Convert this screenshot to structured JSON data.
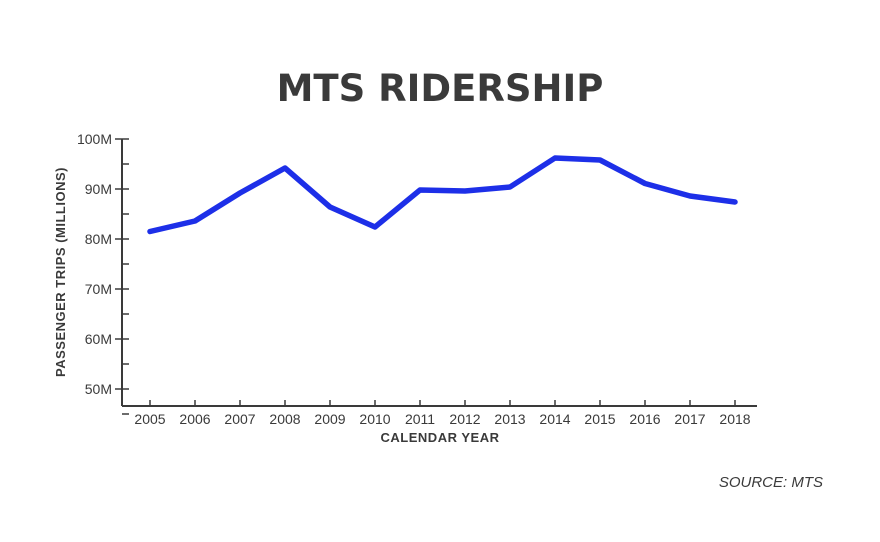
{
  "chart_data": {
    "type": "line",
    "title": "MTS RIDERSHIP",
    "xlabel": "CALENDAR YEAR",
    "ylabel": "PASSENGER TRIPS (MILLIONS)",
    "ylim": [
      45,
      100
    ],
    "y_ticks": [
      {
        "value": 50,
        "label": "50M"
      },
      {
        "value": 60,
        "label": "60M"
      },
      {
        "value": 70,
        "label": "70M"
      },
      {
        "value": 80,
        "label": "80M"
      },
      {
        "value": 90,
        "label": "90M"
      },
      {
        "value": 100,
        "label": "100M"
      }
    ],
    "categories": [
      "2005",
      "2006",
      "2007",
      "2008",
      "2009",
      "2010",
      "2011",
      "2012",
      "2013",
      "2014",
      "2015",
      "2016",
      "2017",
      "2018"
    ],
    "series": [
      {
        "values": [
          81.5,
          83.6,
          89.2,
          94.2,
          86.4,
          82.4,
          89.8,
          89.6,
          90.4,
          96.2,
          95.8,
          91.1,
          88.6,
          87.4
        ],
        "color": "#1d2fe8"
      }
    ],
    "grid": false,
    "legend": "none",
    "source": "SOURCE: MTS"
  }
}
